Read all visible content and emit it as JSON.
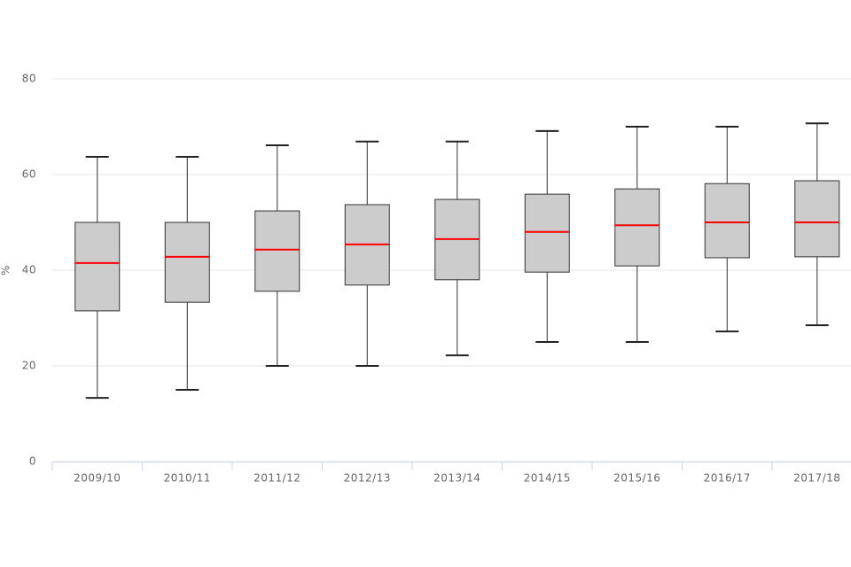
{
  "chart_data": {
    "type": "box",
    "y_label": "%",
    "categories": [
      "2009/10",
      "2010/11",
      "2011/12",
      "2012/13",
      "2013/14",
      "2014/15",
      "2015/16",
      "2016/17",
      "2017/18"
    ],
    "whisker_high": [
      63.7,
      63.7,
      66.1,
      66.9,
      66.9,
      69.1,
      70,
      70,
      70.7
    ],
    "q3": [
      50,
      50,
      52.4,
      53.7,
      54.8,
      55.9,
      57,
      58.1,
      58.7
    ],
    "median": [
      41.5,
      42.8,
      44.3,
      45.4,
      46.5,
      48,
      49.4,
      50,
      50
    ],
    "q1": [
      31.5,
      33.3,
      35.6,
      36.9,
      38,
      39.6,
      40.9,
      42.6,
      42.8
    ],
    "whisker_low": [
      13.3,
      15,
      20,
      20,
      22.2,
      25,
      25,
      27.2,
      28.5
    ],
    "box_color": "#cccccc",
    "median_color": "#ff0000",
    "ylim": [
      0,
      80
    ],
    "yticks": [
      0,
      20,
      40,
      60,
      80
    ],
    "grid": true
  }
}
